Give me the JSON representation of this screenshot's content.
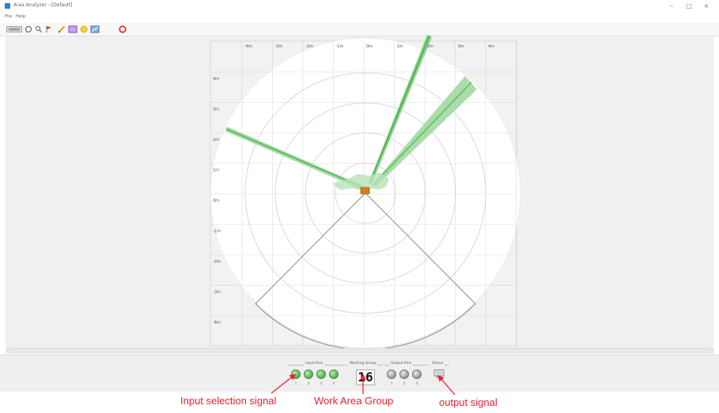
{
  "window": {
    "title": "Area Analyzer - [Default]",
    "menu": [
      "File",
      "Help"
    ],
    "controls": {
      "minimize": "–",
      "maximize": "□",
      "close": "×"
    }
  },
  "toolbar": {
    "buttons": [
      {
        "name": "connect-button",
        "icon": "connect-icon"
      },
      {
        "name": "search-button",
        "icon": "search-icon"
      },
      {
        "name": "zoom-button",
        "icon": "magnifier-icon"
      },
      {
        "name": "marker-button",
        "icon": "flag-icon"
      },
      {
        "name": "draw-line-button",
        "icon": "pencil-icon"
      },
      {
        "name": "rect-area-button",
        "icon": "rectangle-icon"
      },
      {
        "name": "circle-area-button",
        "icon": "circle-icon"
      },
      {
        "name": "polygon-area-button",
        "icon": "polygon-icon"
      },
      {
        "name": "stop-button",
        "icon": "stop-icon"
      }
    ]
  },
  "radar": {
    "x_ticks": [
      "-4m",
      "-3m",
      "-2m",
      "-1m",
      "0m",
      "1m",
      "2m",
      "3m",
      "4m"
    ],
    "y_ticks": [
      "4m",
      "3m",
      "2m",
      "1m",
      "0m",
      "-1m",
      "-2m",
      "-3m",
      "-4m"
    ],
    "colors": {
      "scan": "#5dbe5d",
      "scan_fill": "#9bd69b",
      "sensor": "#e07b1a",
      "grid_bg": "#f2f2f2"
    }
  },
  "status_bar": {
    "input_pins": {
      "title": "Input Pins",
      "labels": [
        "1",
        "2",
        "3",
        "4"
      ],
      "states": [
        "on",
        "on",
        "on",
        "on"
      ]
    },
    "working_group": {
      "title": "Working Group",
      "value": "16"
    },
    "output_pins": {
      "title": "Output Pins",
      "labels": [
        "1",
        "2",
        "3"
      ],
      "states": [
        "off",
        "off",
        "off"
      ]
    },
    "status": {
      "title": "Status",
      "icon": "monitor-icon"
    }
  },
  "annotations": {
    "input": "Input selection signal",
    "work_area": "Work Area Group",
    "output": "output signal",
    "color": "#e8222d"
  }
}
